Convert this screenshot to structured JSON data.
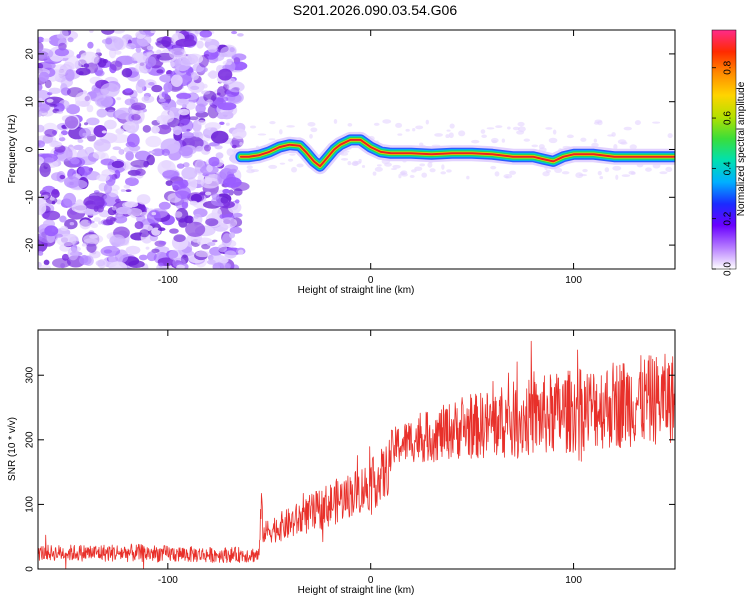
{
  "title": "S201.2026.090.03.54.G06",
  "colors": {
    "background": "#ffffff",
    "axis": "#000000",
    "snr_line": "#e8302a",
    "noise_blob": "#7b2fe0",
    "track_outer": "#2a5cff",
    "track_mid": "#22d460",
    "track_core": "#ee2020"
  },
  "chart_data": [
    {
      "type": "heatmap",
      "name": "spectrogram",
      "xlabel": "Height of straight line (km)",
      "ylabel": "Frequency (Hz)",
      "xlim": [
        -164,
        150
      ],
      "ylim": [
        -25,
        25
      ],
      "xticks": [
        -100,
        0,
        100
      ],
      "yticks": [
        -20,
        -10,
        0,
        10,
        20
      ],
      "noise_region_xlim": [
        -164,
        -64
      ],
      "signal_region_xlim": [
        -64,
        150
      ],
      "frequency_track": {
        "x": [
          -64,
          -60,
          -55,
          -50,
          -45,
          -40,
          -35,
          -32,
          -28,
          -25,
          -22,
          -18,
          -15,
          -10,
          -5,
          0,
          5,
          10,
          20,
          30,
          40,
          50,
          60,
          70,
          75,
          80,
          85,
          90,
          95,
          100,
          110,
          120,
          130,
          140,
          150
        ],
        "y": [
          -1.5,
          -1.5,
          -1.2,
          -0.5,
          0.5,
          1.0,
          0.8,
          -0.5,
          -2.5,
          -3.5,
          -2.0,
          0,
          1.0,
          2.0,
          2.0,
          0.5,
          -0.5,
          -0.8,
          -0.8,
          -1.0,
          -0.8,
          -0.8,
          -1.0,
          -1.5,
          -1.5,
          -1.5,
          -2.0,
          -2.5,
          -1.5,
          -1.0,
          -1.0,
          -1.5,
          -1.5,
          -1.5,
          -1.5
        ]
      },
      "colorbar": {
        "label": "Normalized spectral amplitude",
        "range": [
          0,
          0.95
        ],
        "ticks": [
          "0.0",
          "0.2",
          "0.4",
          "0.6",
          "0.8"
        ],
        "tick_values": [
          0.0,
          0.2,
          0.4,
          0.6,
          0.8
        ],
        "colormap": [
          "#ffffff",
          "#b57bff",
          "#6a00ff",
          "#1a2cff",
          "#00b0ff",
          "#00e0b0",
          "#3ade3a",
          "#b4e000",
          "#ffd400",
          "#ff8c00",
          "#ff2a00",
          "#ff2a8a"
        ]
      }
    },
    {
      "type": "line",
      "name": "snr",
      "xlabel": "Height of straight line (km)",
      "ylabel": "SNR (10 * v/v)",
      "xlim": [
        -164,
        150
      ],
      "ylim": [
        0,
        370
      ],
      "xticks": [
        -100,
        0,
        100
      ],
      "yticks": [
        0,
        100,
        200,
        300
      ],
      "envelope": {
        "x": [
          -164,
          -120,
          -80,
          -55,
          -54,
          -53,
          -50,
          -40,
          -30,
          -20,
          -10,
          0,
          8,
          10,
          12,
          20,
          30,
          40,
          50,
          60,
          70,
          80,
          90,
          100,
          110,
          120,
          130,
          140,
          150
        ],
        "center": [
          25,
          25,
          22,
          22,
          95,
          55,
          60,
          70,
          85,
          100,
          115,
          130,
          150,
          180,
          190,
          200,
          205,
          215,
          220,
          225,
          230,
          235,
          240,
          245,
          250,
          255,
          260,
          262,
          265
        ],
        "amplitude": [
          12,
          14,
          12,
          12,
          40,
          15,
          20,
          25,
          30,
          35,
          35,
          40,
          45,
          35,
          30,
          35,
          40,
          45,
          50,
          55,
          60,
          60,
          65,
          65,
          65,
          70,
          70,
          70,
          70
        ]
      }
    }
  ]
}
